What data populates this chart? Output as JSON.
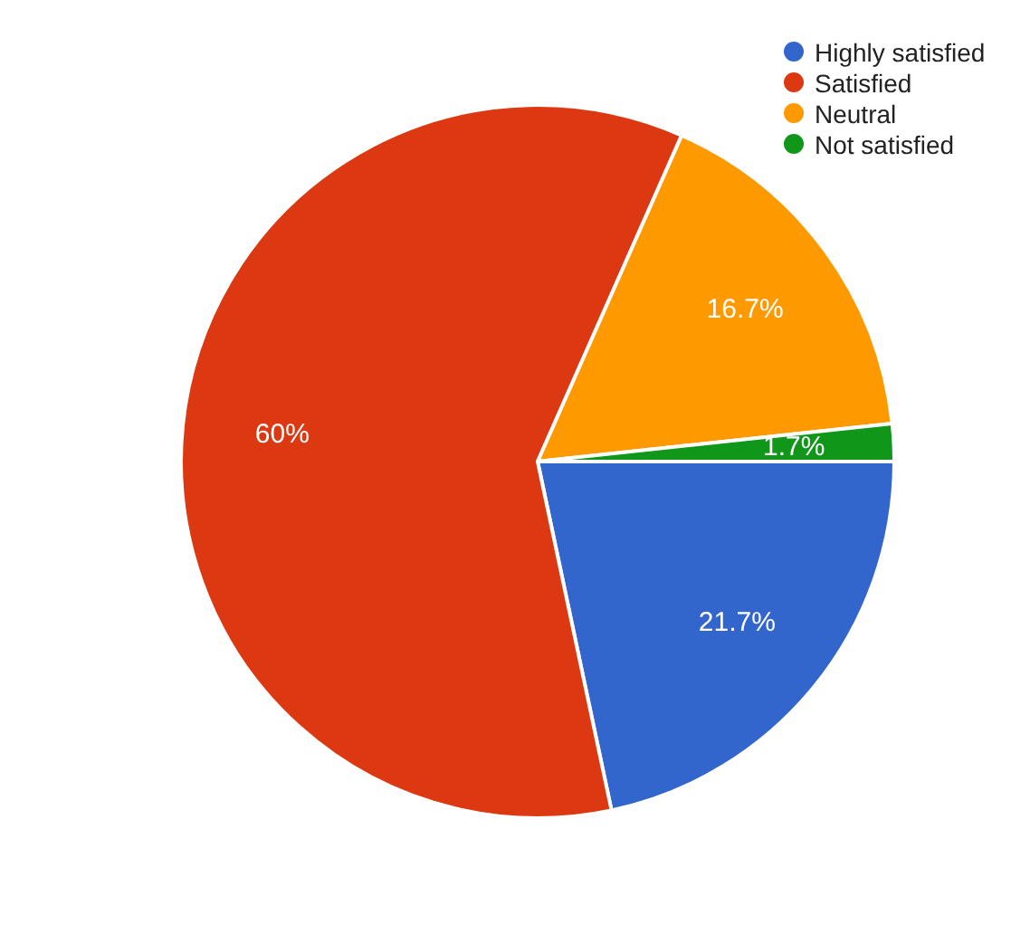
{
  "chart_data": {
    "type": "pie",
    "categories": [
      "Highly satisfied",
      "Satisfied",
      "Neutral",
      "Not satisfied"
    ],
    "values": [
      21.7,
      60,
      16.7,
      1.7
    ],
    "colors": [
      "#3366cc",
      "#dc3912",
      "#ff9900",
      "#109618"
    ],
    "value_labels": [
      "21.7%",
      "60%",
      "16.7%",
      "1.7%"
    ],
    "legend": "top right"
  }
}
